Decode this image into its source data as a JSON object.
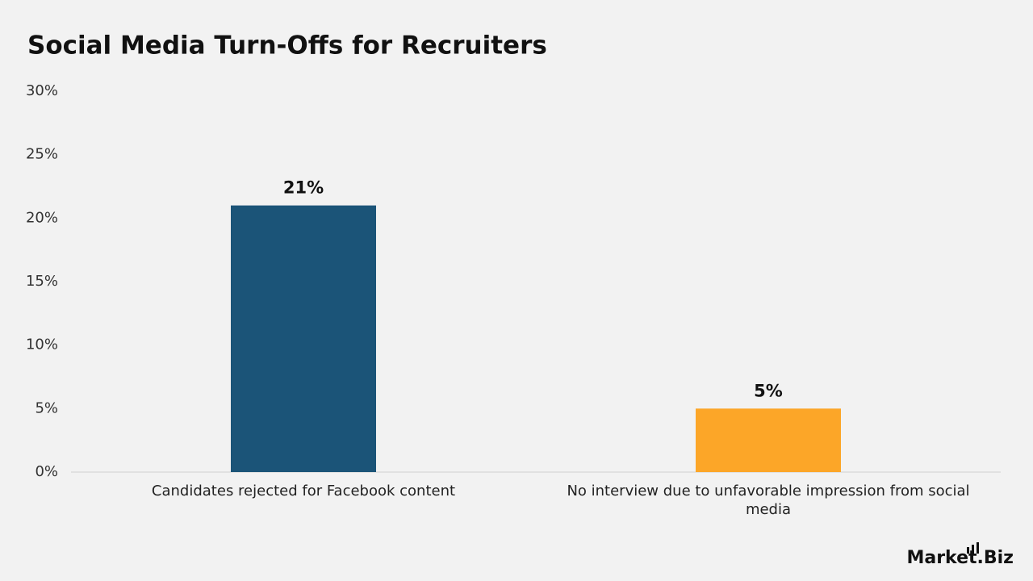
{
  "chart_data": {
    "type": "bar",
    "title": "Social Media Turn-Offs for Recruiters",
    "categories": [
      "Candidates rejected for Facebook content",
      "No interview due to unfavorable impression from social media"
    ],
    "values": [
      21,
      5
    ],
    "value_labels": [
      "21%",
      "5%"
    ],
    "colors": [
      "#1b5478",
      "#fca628"
    ],
    "ylim": [
      0,
      30
    ],
    "yticks": [
      {
        "value": 0,
        "label": "0%"
      },
      {
        "value": 5,
        "label": "5%"
      },
      {
        "value": 10,
        "label": "10%"
      },
      {
        "value": 15,
        "label": "15%"
      },
      {
        "value": 20,
        "label": "20%"
      },
      {
        "value": 25,
        "label": "25%"
      },
      {
        "value": 30,
        "label": "30%"
      }
    ],
    "grid": false
  },
  "logo": "Market.Biz"
}
